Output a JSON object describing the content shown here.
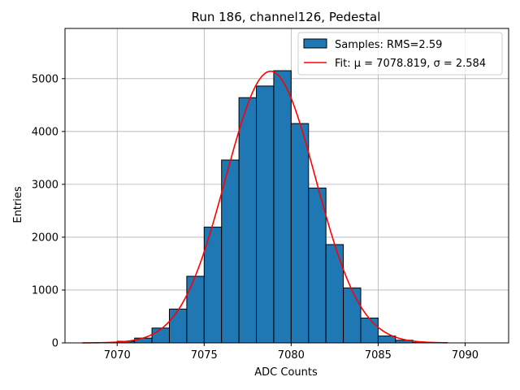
{
  "chart_data": {
    "type": "bar",
    "title": "Run 186, channel126, Pedestal",
    "xlabel": "ADC Counts",
    "ylabel": "Entries",
    "xlim": [
      7067,
      7092.5
    ],
    "ylim": [
      0,
      5950
    ],
    "grid": true,
    "legend_position": "top-right",
    "x_ticks": [
      7070,
      7075,
      7080,
      7085,
      7090
    ],
    "y_ticks": [
      0,
      1000,
      2000,
      3000,
      4000,
      5000
    ],
    "bar_color": "#1f77b4",
    "fit_color": "#ff0000",
    "histogram": {
      "name": "Samples: RMS=2.59",
      "bin_width": 1,
      "bin_edges_start": [
        7068,
        7069,
        7070,
        7071,
        7072,
        7073,
        7074,
        7075,
        7076,
        7077,
        7078,
        7079,
        7080,
        7081,
        7082,
        7083,
        7084,
        7085,
        7086,
        7087,
        7088
      ],
      "counts": [
        0,
        5,
        30,
        90,
        280,
        640,
        1260,
        2190,
        3460,
        4640,
        4860,
        5150,
        4150,
        2930,
        1860,
        1040,
        470,
        130,
        50,
        10,
        0
      ]
    },
    "fit": {
      "name": "Fit: μ = 7078.819, σ = 2.584",
      "mu": 7078.819,
      "sigma": 2.584,
      "amplitude": 5140,
      "x_range": [
        7068,
        7089
      ]
    }
  }
}
